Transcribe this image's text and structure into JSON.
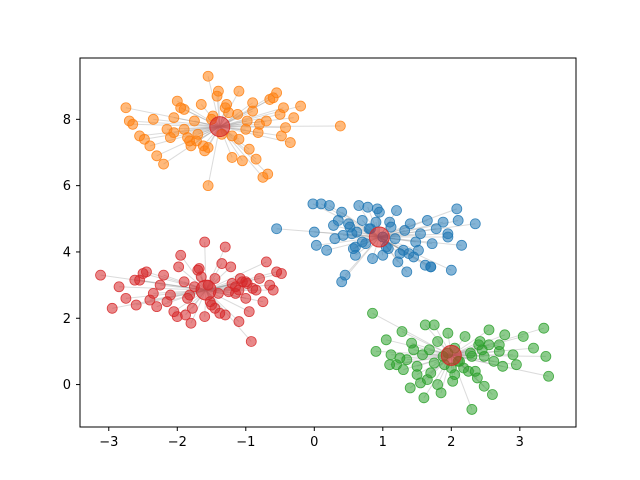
{
  "chart_data": {
    "type": "scatter",
    "title": "",
    "xlabel": "",
    "ylabel": "",
    "xlim": [
      -3.42,
      3.82
    ],
    "ylim": [
      -1.28,
      9.85
    ],
    "xticks": [
      -3,
      -2,
      -1,
      0,
      1,
      2,
      3
    ],
    "yticks": [
      0,
      2,
      4,
      6,
      8
    ],
    "xtick_labels": [
      "−3",
      "−2",
      "−1",
      "0",
      "1",
      "2",
      "3"
    ],
    "ytick_labels": [
      "0",
      "2",
      "4",
      "6",
      "8"
    ],
    "grid": false,
    "legend": "none",
    "line_color": "#999999",
    "series": [
      {
        "color": "#1f77b4",
        "center": [
          0.95,
          4.45
        ],
        "x": [
          -0.55,
          0.0,
          0.03,
          0.18,
          0.28,
          0.35,
          0.42,
          0.5,
          0.57,
          0.62,
          0.7,
          0.75,
          0.82,
          0.9,
          1.0,
          1.05,
          1.12,
          1.18,
          1.25,
          1.32,
          1.4,
          1.48,
          1.55,
          1.62,
          1.72,
          1.78,
          1.88,
          1.95,
          2.08,
          2.15,
          2.35,
          -0.02,
          0.1,
          0.22,
          0.4,
          0.52,
          0.65,
          0.78,
          0.92,
          1.1,
          1.3,
          1.45,
          1.7,
          1.95,
          2.0,
          0.4,
          0.45,
          0.6,
          0.85,
          1.08,
          1.22,
          1.38,
          1.52,
          1.7,
          0.7,
          0.95,
          1.2,
          0.3,
          0.55,
          1.65,
          2.1,
          1.35,
          0.8,
          0.6,
          1.0
        ],
        "y": [
          4.7,
          4.6,
          4.2,
          4.05,
          4.8,
          4.95,
          4.5,
          4.85,
          4.1,
          4.6,
          4.95,
          4.25,
          4.7,
          4.9,
          4.45,
          4.15,
          4.75,
          4.4,
          3.95,
          4.65,
          4.85,
          4.3,
          4.55,
          3.6,
          4.25,
          4.7,
          4.9,
          4.55,
          5.3,
          4.2,
          4.85,
          5.45,
          5.45,
          5.4,
          5.2,
          4.75,
          5.4,
          5.35,
          5.3,
          4.9,
          4.05,
          3.85,
          3.55,
          4.45,
          3.45,
          3.1,
          3.3,
          3.9,
          3.8,
          4.1,
          3.7,
          3.95,
          4.05,
          3.55,
          4.3,
          5.2,
          5.25,
          4.4,
          4.55,
          4.95,
          4.95,
          3.4,
          4.7,
          4.15,
          3.9
        ]
      },
      {
        "color": "#ff7f0e",
        "center": [
          -1.38,
          7.78
        ],
        "x": [
          -2.75,
          -2.7,
          -2.65,
          -2.55,
          -2.48,
          -2.4,
          -2.3,
          -2.2,
          -2.1,
          -2.05,
          -2.0,
          -1.95,
          -1.9,
          -1.82,
          -1.75,
          -1.7,
          -1.62,
          -1.55,
          -1.48,
          -1.42,
          -1.35,
          -1.28,
          -1.2,
          -1.12,
          -1.05,
          -0.98,
          -0.9,
          -0.82,
          -0.75,
          -0.68,
          -0.6,
          -0.55,
          -0.48,
          -0.42,
          -0.35,
          -0.2,
          0.38,
          -2.35,
          -2.15,
          -1.9,
          -1.72,
          -1.55,
          -1.4,
          -1.25,
          -1.1,
          -0.95,
          -0.8,
          -0.65,
          -0.5,
          -1.8,
          -1.5,
          -1.2,
          -0.9,
          -1.6,
          -1.3,
          -1.0,
          -0.7,
          -2.05,
          -1.85,
          -1.65,
          -0.85,
          -1.55,
          -1.1,
          -0.45,
          -0.3
        ],
        "y": [
          8.35,
          7.95,
          7.85,
          7.5,
          7.4,
          7.2,
          6.9,
          6.65,
          7.45,
          7.6,
          8.55,
          8.35,
          7.7,
          7.35,
          7.95,
          7.55,
          7.2,
          6.0,
          8.1,
          8.7,
          7.55,
          8.45,
          6.85,
          8.15,
          6.75,
          7.95,
          8.5,
          7.6,
          6.25,
          6.35,
          8.65,
          8.8,
          7.5,
          7.75,
          7.3,
          8.4,
          7.8,
          8.0,
          7.7,
          8.3,
          7.35,
          7.15,
          8.85,
          8.2,
          7.4,
          7.1,
          7.85,
          8.6,
          8.15,
          7.2,
          8.0,
          7.5,
          8.25,
          7.05,
          8.35,
          7.7,
          7.95,
          8.05,
          7.45,
          8.45,
          6.8,
          9.3,
          8.85,
          8.35,
          8.05
        ]
      },
      {
        "color": "#2ca02c",
        "center": [
          2.0,
          0.88
        ],
        "x": [
          0.85,
          0.9,
          1.05,
          1.12,
          1.2,
          1.28,
          1.35,
          1.42,
          1.5,
          1.58,
          1.62,
          1.68,
          1.75,
          1.8,
          1.88,
          1.95,
          2.0,
          2.05,
          2.12,
          2.2,
          2.28,
          2.35,
          2.42,
          2.48,
          2.55,
          2.62,
          2.7,
          2.78,
          2.9,
          2.95,
          3.05,
          3.2,
          3.35,
          3.38,
          3.42,
          1.25,
          1.4,
          1.55,
          1.7,
          1.85,
          2.02,
          2.18,
          2.3,
          2.45,
          2.6,
          2.75,
          1.6,
          1.9,
          2.25,
          1.1,
          1.5,
          2.38,
          2.48,
          1.65,
          2.1,
          2.55,
          1.3,
          1.45,
          1.95,
          2.3,
          2.7,
          1.8,
          2.05,
          2.4,
          1.75
        ],
        "y": [
          2.15,
          1.0,
          1.35,
          0.9,
          0.6,
          1.6,
          0.75,
          1.25,
          0.55,
          0.9,
          1.8,
          1.05,
          0.65,
          1.3,
          0.85,
          1.55,
          0.5,
          1.1,
          0.7,
          1.45,
          0.95,
          0.4,
          1.3,
          0.85,
          1.65,
          0.7,
          1.2,
          1.5,
          0.9,
          0.6,
          1.45,
          1.1,
          1.7,
          0.85,
          0.25,
          0.8,
          -0.1,
          0.05,
          0.35,
          -0.25,
          0.1,
          0.5,
          -0.75,
          1.05,
          -0.3,
          0.55,
          -0.4,
          0.6,
          0.4,
          0.6,
          0.3,
          0.2,
          -0.05,
          0.15,
          0.7,
          1.2,
          0.45,
          1.05,
          0.95,
          0.85,
          1.0,
          0.0,
          0.3,
          1.2,
          1.8
        ]
      },
      {
        "color": "#d62728",
        "center": [
          -1.58,
          2.85
        ],
        "x": [
          -3.12,
          -2.95,
          -2.85,
          -2.75,
          -2.62,
          -2.55,
          -2.45,
          -2.35,
          -2.25,
          -2.15,
          -2.05,
          -1.98,
          -1.9,
          -1.82,
          -1.75,
          -1.68,
          -1.6,
          -1.52,
          -1.45,
          -1.38,
          -1.3,
          -1.22,
          -1.15,
          -1.08,
          -1.0,
          -0.92,
          -0.85,
          -0.75,
          -0.65,
          -0.6,
          -0.55,
          -0.48,
          -2.6,
          -2.3,
          -2.0,
          -1.8,
          -1.5,
          -1.3,
          -1.1,
          -0.95,
          -0.8,
          -2.2,
          -1.95,
          -1.7,
          -1.45,
          -1.2,
          -1.05,
          -0.9,
          -2.1,
          -1.85,
          -1.6,
          -1.35,
          -1.15,
          -0.98,
          -1.78,
          -1.55,
          -1.25,
          -2.4,
          -1.1,
          -1.88,
          -1.4,
          -0.7,
          -2.5,
          -1.65,
          -1.0
        ],
        "y": [
          3.3,
          2.3,
          2.95,
          2.6,
          3.15,
          3.15,
          3.4,
          2.75,
          3.0,
          2.5,
          2.2,
          3.55,
          3.1,
          2.7,
          2.95,
          3.5,
          4.3,
          2.5,
          2.3,
          2.15,
          4.15,
          3.55,
          2.95,
          3.2,
          2.6,
          1.3,
          2.85,
          2.5,
          3.0,
          2.85,
          3.4,
          3.35,
          2.4,
          2.35,
          2.05,
          1.85,
          2.4,
          2.1,
          2.85,
          2.2,
          3.2,
          3.3,
          3.9,
          3.45,
          3.2,
          3.05,
          3.1,
          2.9,
          2.7,
          2.6,
          2.05,
          3.65,
          2.75,
          3.05,
          2.3,
          3.0,
          2.8,
          2.55,
          1.9,
          2.1,
          2.75,
          3.7,
          3.35,
          3.25,
          3.1
        ]
      }
    ],
    "centers": {
      "color": "#d62728",
      "points": [
        [
          0.95,
          4.45
        ],
        [
          -1.38,
          7.78
        ],
        [
          2.0,
          0.88
        ],
        [
          -1.58,
          2.85
        ]
      ]
    }
  }
}
